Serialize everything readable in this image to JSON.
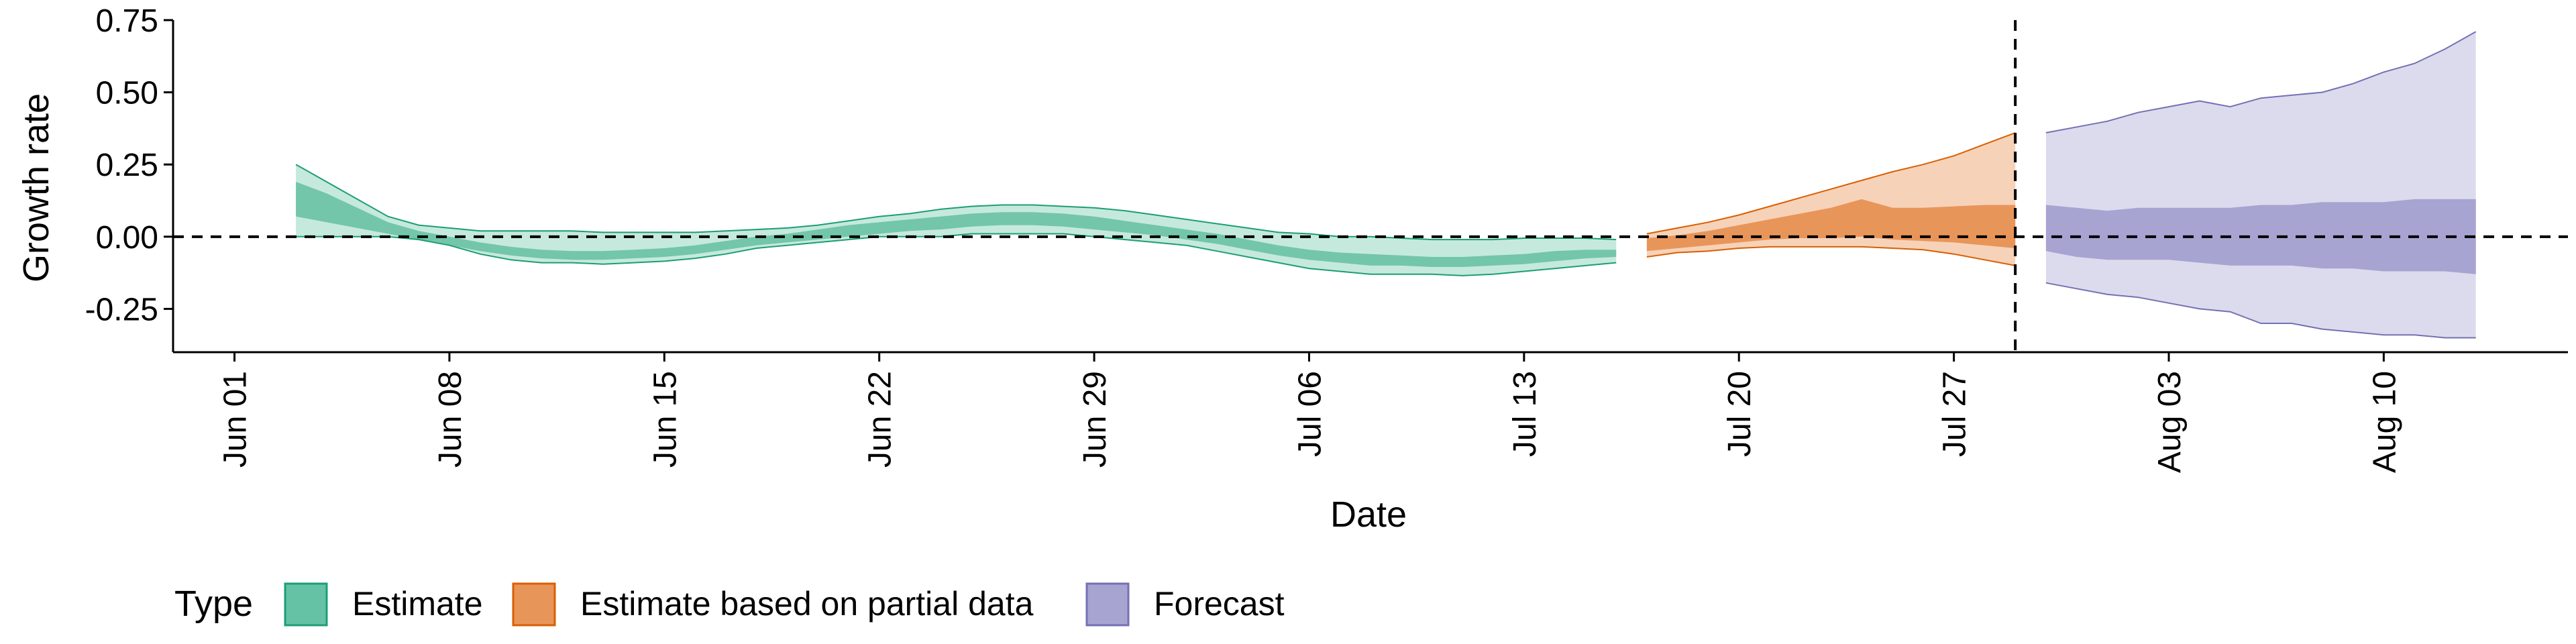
{
  "chart_data": {
    "type": "area",
    "title": "",
    "xlabel": "Date",
    "ylabel": "Growth rate",
    "x_ticks": [
      "Jun 01",
      "Jun 08",
      "Jun 15",
      "Jun 22",
      "Jun 29",
      "Jul 06",
      "Jul 13",
      "Jul 20",
      "Jul 27",
      "Aug 03",
      "Aug 10"
    ],
    "x_tick_dates": [
      "2020-06-01",
      "2020-06-08",
      "2020-06-15",
      "2020-06-22",
      "2020-06-29",
      "2020-07-06",
      "2020-07-13",
      "2020-07-20",
      "2020-07-27",
      "2020-08-03",
      "2020-08-10"
    ],
    "x_range": [
      "2020-05-30",
      "2020-08-16"
    ],
    "y_ticks": [
      "0.75",
      "0.50",
      "0.25",
      "0.00",
      "-0.25"
    ],
    "y_tick_values": [
      0.75,
      0.5,
      0.25,
      0.0,
      -0.25
    ],
    "ylim": [
      -0.4,
      0.75
    ],
    "reference_lines": {
      "horizontal_y": 0.0,
      "vertical_date": "2020-07-29",
      "style": "dashed"
    },
    "legend": {
      "title": "Type",
      "position": "bottom",
      "entries": [
        {
          "label": "Estimate",
          "fill": "#66c2a5",
          "stroke": "#1b9e77"
        },
        {
          "label": "Estimate based on partial data",
          "fill": "#e8955a",
          "stroke": "#d95f02"
        },
        {
          "label": "Forecast",
          "fill": "#a7a4d2",
          "stroke": "#7570b3"
        }
      ]
    },
    "series": [
      {
        "name": "Estimate",
        "colors": {
          "outer_fill": "#c6e9dd",
          "inner_fill": "#73c6a9",
          "stroke": "#1b9e77"
        },
        "dates": [
          "2020-06-03",
          "2020-06-04",
          "2020-06-05",
          "2020-06-06",
          "2020-06-07",
          "2020-06-08",
          "2020-06-09",
          "2020-06-10",
          "2020-06-11",
          "2020-06-12",
          "2020-06-13",
          "2020-06-14",
          "2020-06-15",
          "2020-06-16",
          "2020-06-17",
          "2020-06-18",
          "2020-06-19",
          "2020-06-20",
          "2020-06-21",
          "2020-06-22",
          "2020-06-23",
          "2020-06-24",
          "2020-06-25",
          "2020-06-26",
          "2020-06-27",
          "2020-06-28",
          "2020-06-29",
          "2020-06-30",
          "2020-07-01",
          "2020-07-02",
          "2020-07-03",
          "2020-07-04",
          "2020-07-05",
          "2020-07-06",
          "2020-07-07",
          "2020-07-08",
          "2020-07-09",
          "2020-07-10",
          "2020-07-11",
          "2020-07-12",
          "2020-07-13",
          "2020-07-14",
          "2020-07-15",
          "2020-07-16"
        ],
        "lower_90": [
          0.0,
          0.0,
          0.0,
          0.0,
          -0.01,
          -0.03,
          -0.06,
          -0.08,
          -0.09,
          -0.09,
          -0.095,
          -0.09,
          -0.085,
          -0.075,
          -0.06,
          -0.04,
          -0.03,
          -0.02,
          -0.01,
          0.0,
          0.0,
          0.0,
          0.01,
          0.01,
          0.01,
          0.01,
          0.0,
          -0.01,
          -0.02,
          -0.03,
          -0.05,
          -0.07,
          -0.09,
          -0.11,
          -0.12,
          -0.13,
          -0.13,
          -0.13,
          -0.135,
          -0.13,
          -0.12,
          -0.11,
          -0.1,
          -0.09
        ],
        "upper_90": [
          0.25,
          0.19,
          0.13,
          0.07,
          0.04,
          0.03,
          0.02,
          0.02,
          0.02,
          0.02,
          0.015,
          0.015,
          0.015,
          0.015,
          0.02,
          0.025,
          0.03,
          0.04,
          0.055,
          0.07,
          0.08,
          0.095,
          0.105,
          0.11,
          0.11,
          0.105,
          0.1,
          0.09,
          0.075,
          0.06,
          0.045,
          0.03,
          0.015,
          0.01,
          0.0,
          0.0,
          -0.005,
          -0.01,
          -0.01,
          -0.01,
          -0.005,
          -0.005,
          -0.005,
          -0.01
        ],
        "lower_50": [
          0.07,
          0.05,
          0.03,
          0.01,
          -0.01,
          -0.03,
          -0.05,
          -0.065,
          -0.075,
          -0.08,
          -0.08,
          -0.075,
          -0.07,
          -0.06,
          -0.045,
          -0.03,
          -0.02,
          -0.01,
          0.0,
          0.01,
          0.02,
          0.025,
          0.035,
          0.04,
          0.04,
          0.035,
          0.025,
          0.015,
          0.005,
          -0.01,
          -0.025,
          -0.045,
          -0.065,
          -0.08,
          -0.09,
          -0.1,
          -0.1,
          -0.105,
          -0.105,
          -0.1,
          -0.095,
          -0.085,
          -0.075,
          -0.07
        ],
        "upper_50": [
          0.19,
          0.15,
          0.1,
          0.05,
          0.02,
          0.0,
          -0.02,
          -0.035,
          -0.045,
          -0.05,
          -0.05,
          -0.045,
          -0.04,
          -0.03,
          -0.015,
          0.0,
          0.01,
          0.025,
          0.04,
          0.05,
          0.06,
          0.07,
          0.08,
          0.085,
          0.085,
          0.08,
          0.07,
          0.055,
          0.04,
          0.025,
          0.01,
          -0.01,
          -0.03,
          -0.045,
          -0.055,
          -0.06,
          -0.065,
          -0.07,
          -0.07,
          -0.065,
          -0.06,
          -0.05,
          -0.045,
          -0.045
        ]
      },
      {
        "name": "Estimate based on partial data",
        "colors": {
          "outer_fill": "#f6d2b8",
          "inner_fill": "#e8955a",
          "stroke": "#d95f02"
        },
        "dates": [
          "2020-07-17",
          "2020-07-18",
          "2020-07-19",
          "2020-07-20",
          "2020-07-21",
          "2020-07-22",
          "2020-07-23",
          "2020-07-24",
          "2020-07-25",
          "2020-07-26",
          "2020-07-27",
          "2020-07-28",
          "2020-07-29"
        ],
        "lower_90": [
          -0.07,
          -0.055,
          -0.05,
          -0.04,
          -0.035,
          -0.035,
          -0.035,
          -0.035,
          -0.04,
          -0.045,
          -0.06,
          -0.08,
          -0.1
        ],
        "upper_90": [
          0.01,
          0.03,
          0.05,
          0.075,
          0.105,
          0.135,
          0.165,
          0.195,
          0.225,
          0.25,
          0.28,
          0.32,
          0.36
        ],
        "lower_50": [
          -0.05,
          -0.04,
          -0.03,
          -0.02,
          -0.01,
          -0.005,
          -0.005,
          0.0,
          -0.01,
          -0.015,
          -0.02,
          -0.03,
          -0.04
        ],
        "upper_50": [
          -0.005,
          0.005,
          0.02,
          0.04,
          0.06,
          0.08,
          0.1,
          0.13,
          0.1,
          0.1,
          0.105,
          0.11,
          0.11
        ]
      },
      {
        "name": "Forecast",
        "colors": {
          "outer_fill": "#dcdbee",
          "inner_fill": "#a7a4d2",
          "stroke": "#7570b3"
        },
        "dates": [
          "2020-07-30",
          "2020-07-31",
          "2020-08-01",
          "2020-08-02",
          "2020-08-03",
          "2020-08-04",
          "2020-08-05",
          "2020-08-06",
          "2020-08-07",
          "2020-08-08",
          "2020-08-09",
          "2020-08-10",
          "2020-08-11",
          "2020-08-12",
          "2020-08-13"
        ],
        "lower_90": [
          -0.16,
          -0.18,
          -0.2,
          -0.21,
          -0.23,
          -0.25,
          -0.26,
          -0.3,
          -0.3,
          -0.32,
          -0.33,
          -0.34,
          -0.34,
          -0.35,
          -0.35
        ],
        "upper_90": [
          0.36,
          0.38,
          0.4,
          0.43,
          0.45,
          0.47,
          0.45,
          0.48,
          0.49,
          0.5,
          0.53,
          0.57,
          0.6,
          0.65,
          0.71
        ],
        "lower_50": [
          -0.05,
          -0.07,
          -0.08,
          -0.08,
          -0.08,
          -0.09,
          -0.1,
          -0.1,
          -0.1,
          -0.11,
          -0.11,
          -0.12,
          -0.12,
          -0.12,
          -0.13
        ],
        "upper_50": [
          0.11,
          0.1,
          0.09,
          0.1,
          0.1,
          0.1,
          0.1,
          0.11,
          0.11,
          0.12,
          0.12,
          0.12,
          0.13,
          0.13,
          0.13
        ]
      }
    ]
  }
}
